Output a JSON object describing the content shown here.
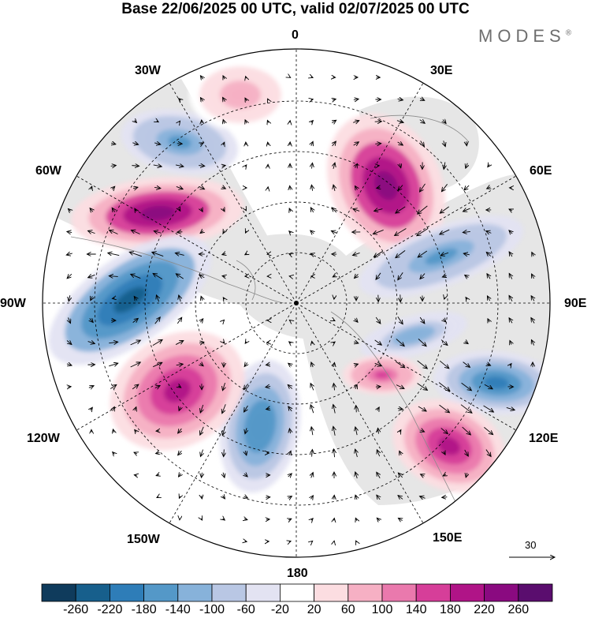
{
  "header": {
    "title": "Base 22/06/2025 00 UTC, valid 02/07/2025 00 UTC",
    "brand": "MODES",
    "brand_mark": "®"
  },
  "longitude_labels": [
    {
      "id": "lon-0",
      "text": "0"
    },
    {
      "id": "lon-30e",
      "text": "30E"
    },
    {
      "id": "lon-60e",
      "text": "60E"
    },
    {
      "id": "lon-90e",
      "text": "90E"
    },
    {
      "id": "lon-120e",
      "text": "120E"
    },
    {
      "id": "lon-150e",
      "text": "150E"
    },
    {
      "id": "lon-180",
      "text": "180"
    },
    {
      "id": "lon-150w",
      "text": "150W"
    },
    {
      "id": "lon-120w",
      "text": "120W"
    },
    {
      "id": "lon-90w",
      "text": "90W"
    },
    {
      "id": "lon-60w",
      "text": "60W"
    },
    {
      "id": "lon-30w",
      "text": "30W"
    }
  ],
  "reference_vector": {
    "label": "30"
  },
  "colorbar": {
    "labels": [
      "-260",
      "-220",
      "-180",
      "-140",
      "-100",
      "-60",
      "-20",
      "20",
      "60",
      "100",
      "140",
      "180",
      "220",
      "260"
    ],
    "colors": [
      "#0f3b5c",
      "#175f8c",
      "#2e7db8",
      "#5498c8",
      "#87b2da",
      "#b9c7e4",
      "#e3e3f2",
      "#ffffff",
      "#fcdde1",
      "#f6b0c4",
      "#ea79ad",
      "#d63e99",
      "#b01487",
      "#8a0a80",
      "#5a0d6e"
    ]
  },
  "anomaly_centers": [
    {
      "name": "north-atlantic-low",
      "value": -160
    },
    {
      "name": "greenland-high",
      "value": 240
    },
    {
      "name": "scandinavia-high",
      "value": 240
    },
    {
      "name": "north-america-low",
      "value": -260
    },
    {
      "name": "west-siberia-low",
      "value": -160
    },
    {
      "name": "central-asia-low",
      "value": -140
    },
    {
      "name": "east-siberia-low",
      "value": -200
    },
    {
      "name": "pacific-high",
      "value": 200
    },
    {
      "name": "alaska-low",
      "value": -180
    },
    {
      "name": "northeast-pacific-high",
      "value": 180
    },
    {
      "name": "north-pacific-high",
      "value": 80
    },
    {
      "name": "siberia-high",
      "value": 160
    }
  ]
}
